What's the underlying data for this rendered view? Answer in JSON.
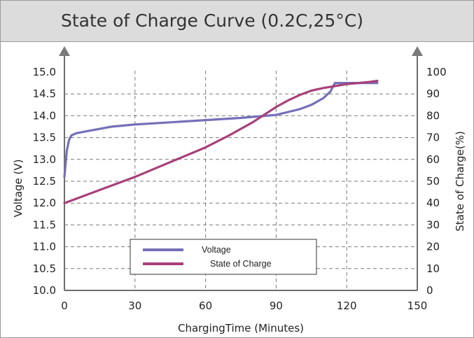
{
  "chart_data": {
    "type": "line",
    "title": "State of Charge Curve (0.2C,25°C)",
    "xlabel": "ChargingTime (Minutes)",
    "ylabel_left": "Voltage (V)",
    "ylabel_right": "State of Charge(%)",
    "xlim": [
      0,
      150
    ],
    "ylim_left": [
      10.0,
      15.0
    ],
    "ylim_right": [
      0,
      100
    ],
    "x_ticks": [
      "0",
      "30",
      "60",
      "90",
      "120",
      "150"
    ],
    "y_ticks_left": [
      "10.0",
      "10.5",
      "11.0",
      "11.5",
      "12.0",
      "12.5",
      "13.0",
      "13.5",
      "14.0",
      "14.5",
      "15.0"
    ],
    "y_ticks_right": [
      "0",
      "10",
      "20",
      "30",
      "40",
      "50",
      "60",
      "70",
      "80",
      "90",
      "100"
    ],
    "grid": true,
    "legend_position": "bottom-center",
    "series": [
      {
        "name": "Voltage",
        "axis": "left",
        "color": "#7570b8",
        "points": [
          [
            0,
            12.6
          ],
          [
            1,
            13.2
          ],
          [
            2,
            13.45
          ],
          [
            3,
            13.55
          ],
          [
            5,
            13.6
          ],
          [
            10,
            13.65
          ],
          [
            20,
            13.75
          ],
          [
            30,
            13.8
          ],
          [
            45,
            13.85
          ],
          [
            60,
            13.9
          ],
          [
            75,
            13.95
          ],
          [
            90,
            14.02
          ],
          [
            100,
            14.15
          ],
          [
            105,
            14.25
          ],
          [
            110,
            14.4
          ],
          [
            113,
            14.55
          ],
          [
            115,
            14.75
          ],
          [
            120,
            14.75
          ],
          [
            133,
            14.75
          ]
        ]
      },
      {
        "name": "State of Charge",
        "axis": "right",
        "color": "#a8407a",
        "points": [
          [
            0,
            40
          ],
          [
            10,
            44
          ],
          [
            20,
            48
          ],
          [
            30,
            52
          ],
          [
            40,
            56.5
          ],
          [
            50,
            61
          ],
          [
            60,
            65.5
          ],
          [
            70,
            71
          ],
          [
            80,
            77
          ],
          [
            90,
            84
          ],
          [
            95,
            87
          ],
          [
            100,
            89.5
          ],
          [
            105,
            91.5
          ],
          [
            110,
            92.7
          ],
          [
            120,
            94.5
          ],
          [
            130,
            95.5
          ],
          [
            133,
            96
          ]
        ]
      }
    ]
  }
}
